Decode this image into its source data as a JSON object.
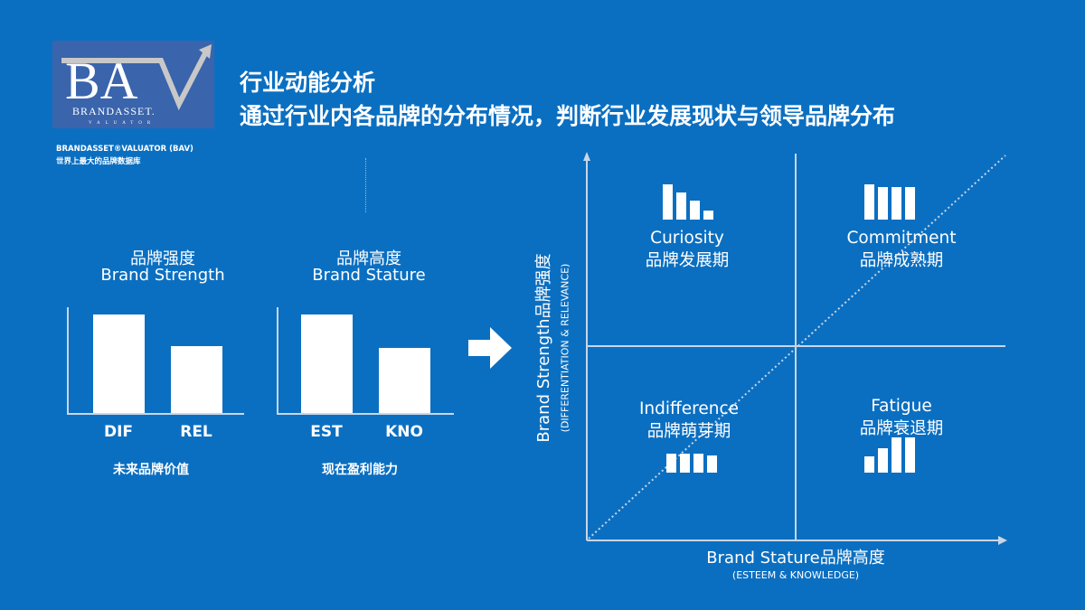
{
  "logo": {
    "text": "BAV",
    "sub": "BRANDASSET",
    "sub2": "VALUATOR",
    "caption_line1": "BRANDASSET®VALUATOR (BAV)",
    "caption_line2": "世界上最大的品牌数据库"
  },
  "header": {
    "title_line1": "行业动能分析",
    "title_line2": "通过行业内各品牌的分布情况，判断行业发展现状与领导品牌分布"
  },
  "chart_data": [
    {
      "type": "bar",
      "title": "品牌强度 Brand Strength",
      "title_zh": "品牌强度",
      "title_en": "Brand Strength",
      "categories": [
        "DIF",
        "REL"
      ],
      "values": [
        100,
        68
      ],
      "caption": "未来品牌价值"
    },
    {
      "type": "bar",
      "title": "品牌高度 Brand Stature",
      "title_zh": "品牌高度",
      "title_en": "Brand Stature",
      "categories": [
        "EST",
        "KNO"
      ],
      "values": [
        100,
        66
      ],
      "caption": "现在盈利能力"
    }
  ],
  "matrix": {
    "y_label": "Brand Strength品牌强度",
    "y_sub": "(DIFFERENTIATION & RELEVANCE)",
    "x_label": "Brand Stature品牌高度",
    "x_sub": "(ESTEEM & KNOWLEDGE)",
    "quadrants": [
      {
        "en": "Curiosity",
        "zh": "品牌发展期"
      },
      {
        "en": "Commitment",
        "zh": "品牌成熟期"
      },
      {
        "en": "Indifference",
        "zh": "品牌萌芽期"
      },
      {
        "en": "Fatigue",
        "zh": "品牌衰退期"
      }
    ]
  },
  "colors": {
    "background": "#0b6fc1",
    "logo_bg": "#3a64ac",
    "bars": "#ffffff"
  }
}
